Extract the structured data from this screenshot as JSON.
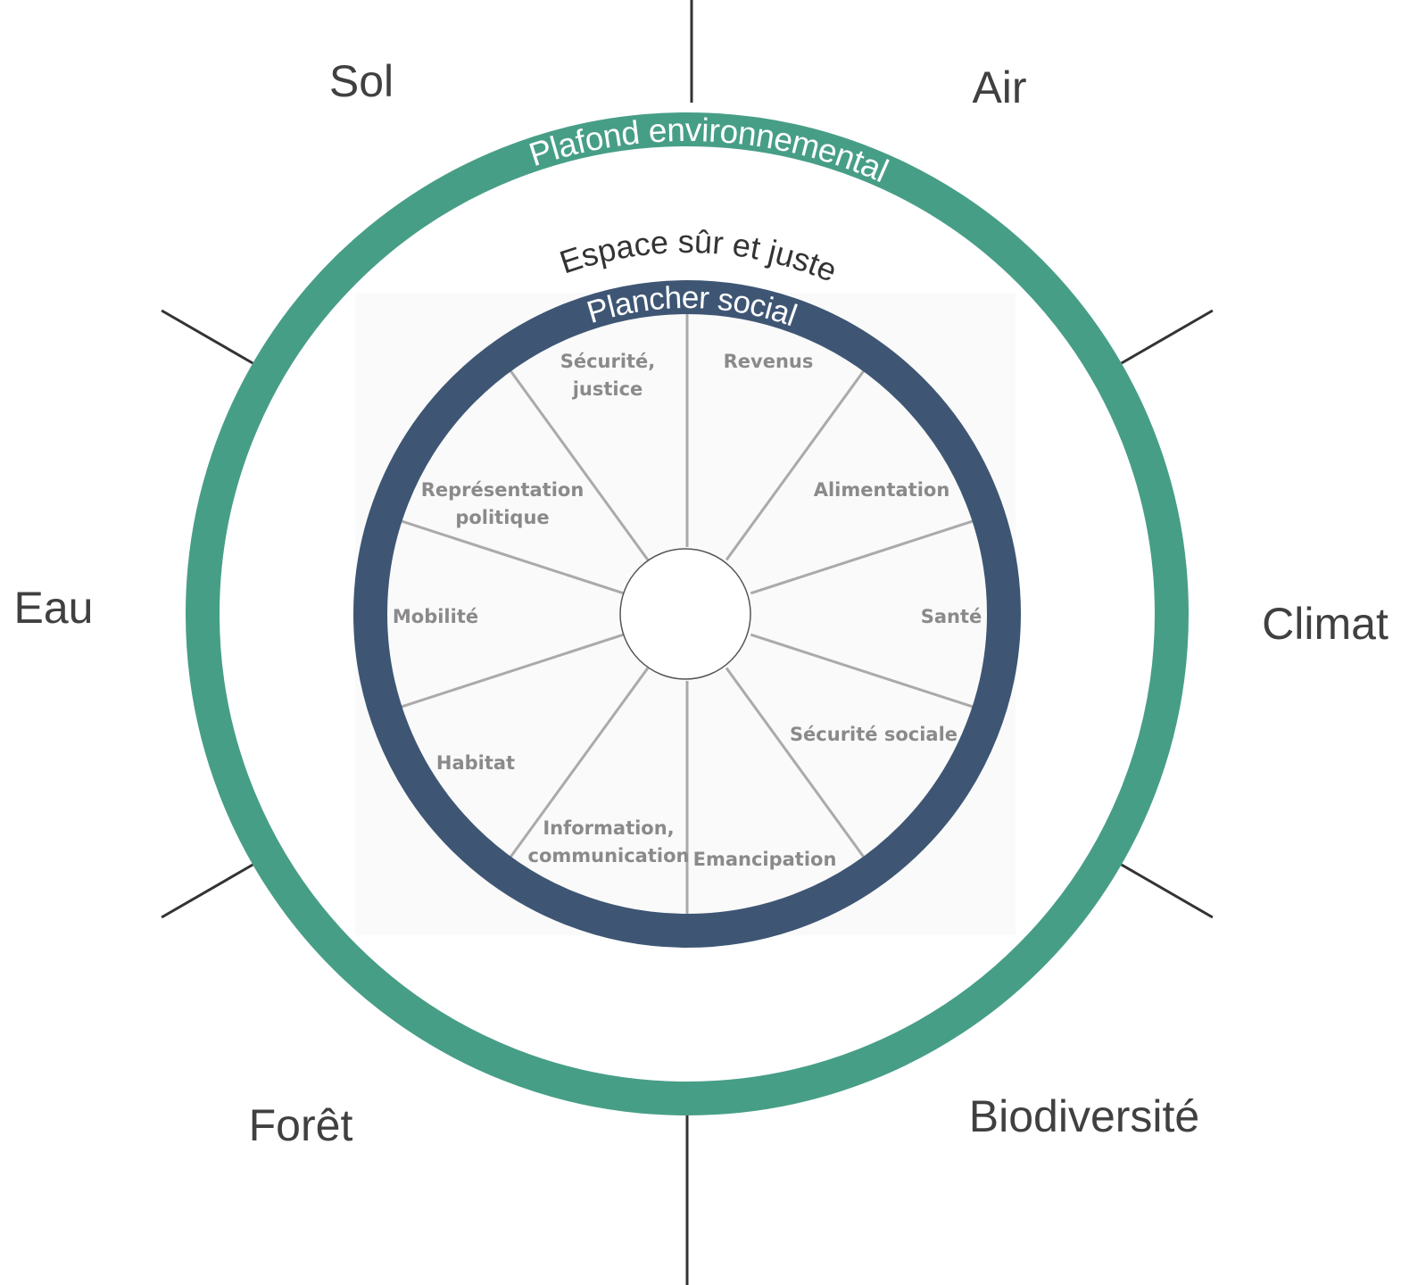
{
  "outer_labels": [
    "Sol",
    "Air",
    "Climat",
    "Biodiversité",
    "Forêt",
    "Eau"
  ],
  "ceiling_label": "Plafond environnemental",
  "space_label": "Espace sûr et juste",
  "floor_label": "Plancher social",
  "sectors": [
    {
      "lines": [
        "Sécurité,",
        "justice"
      ]
    },
    {
      "lines": [
        "Revenus"
      ]
    },
    {
      "lines": [
        "Alimentation"
      ]
    },
    {
      "lines": [
        "Santé"
      ]
    },
    {
      "lines": [
        "Sécurité sociale"
      ]
    },
    {
      "lines": [
        "Emancipation"
      ]
    },
    {
      "lines": [
        "Information,",
        "communication"
      ]
    },
    {
      "lines": [
        "Habitat"
      ]
    },
    {
      "lines": [
        "Mobilité"
      ]
    },
    {
      "lines": [
        "Représentation",
        "politique"
      ]
    }
  ]
}
